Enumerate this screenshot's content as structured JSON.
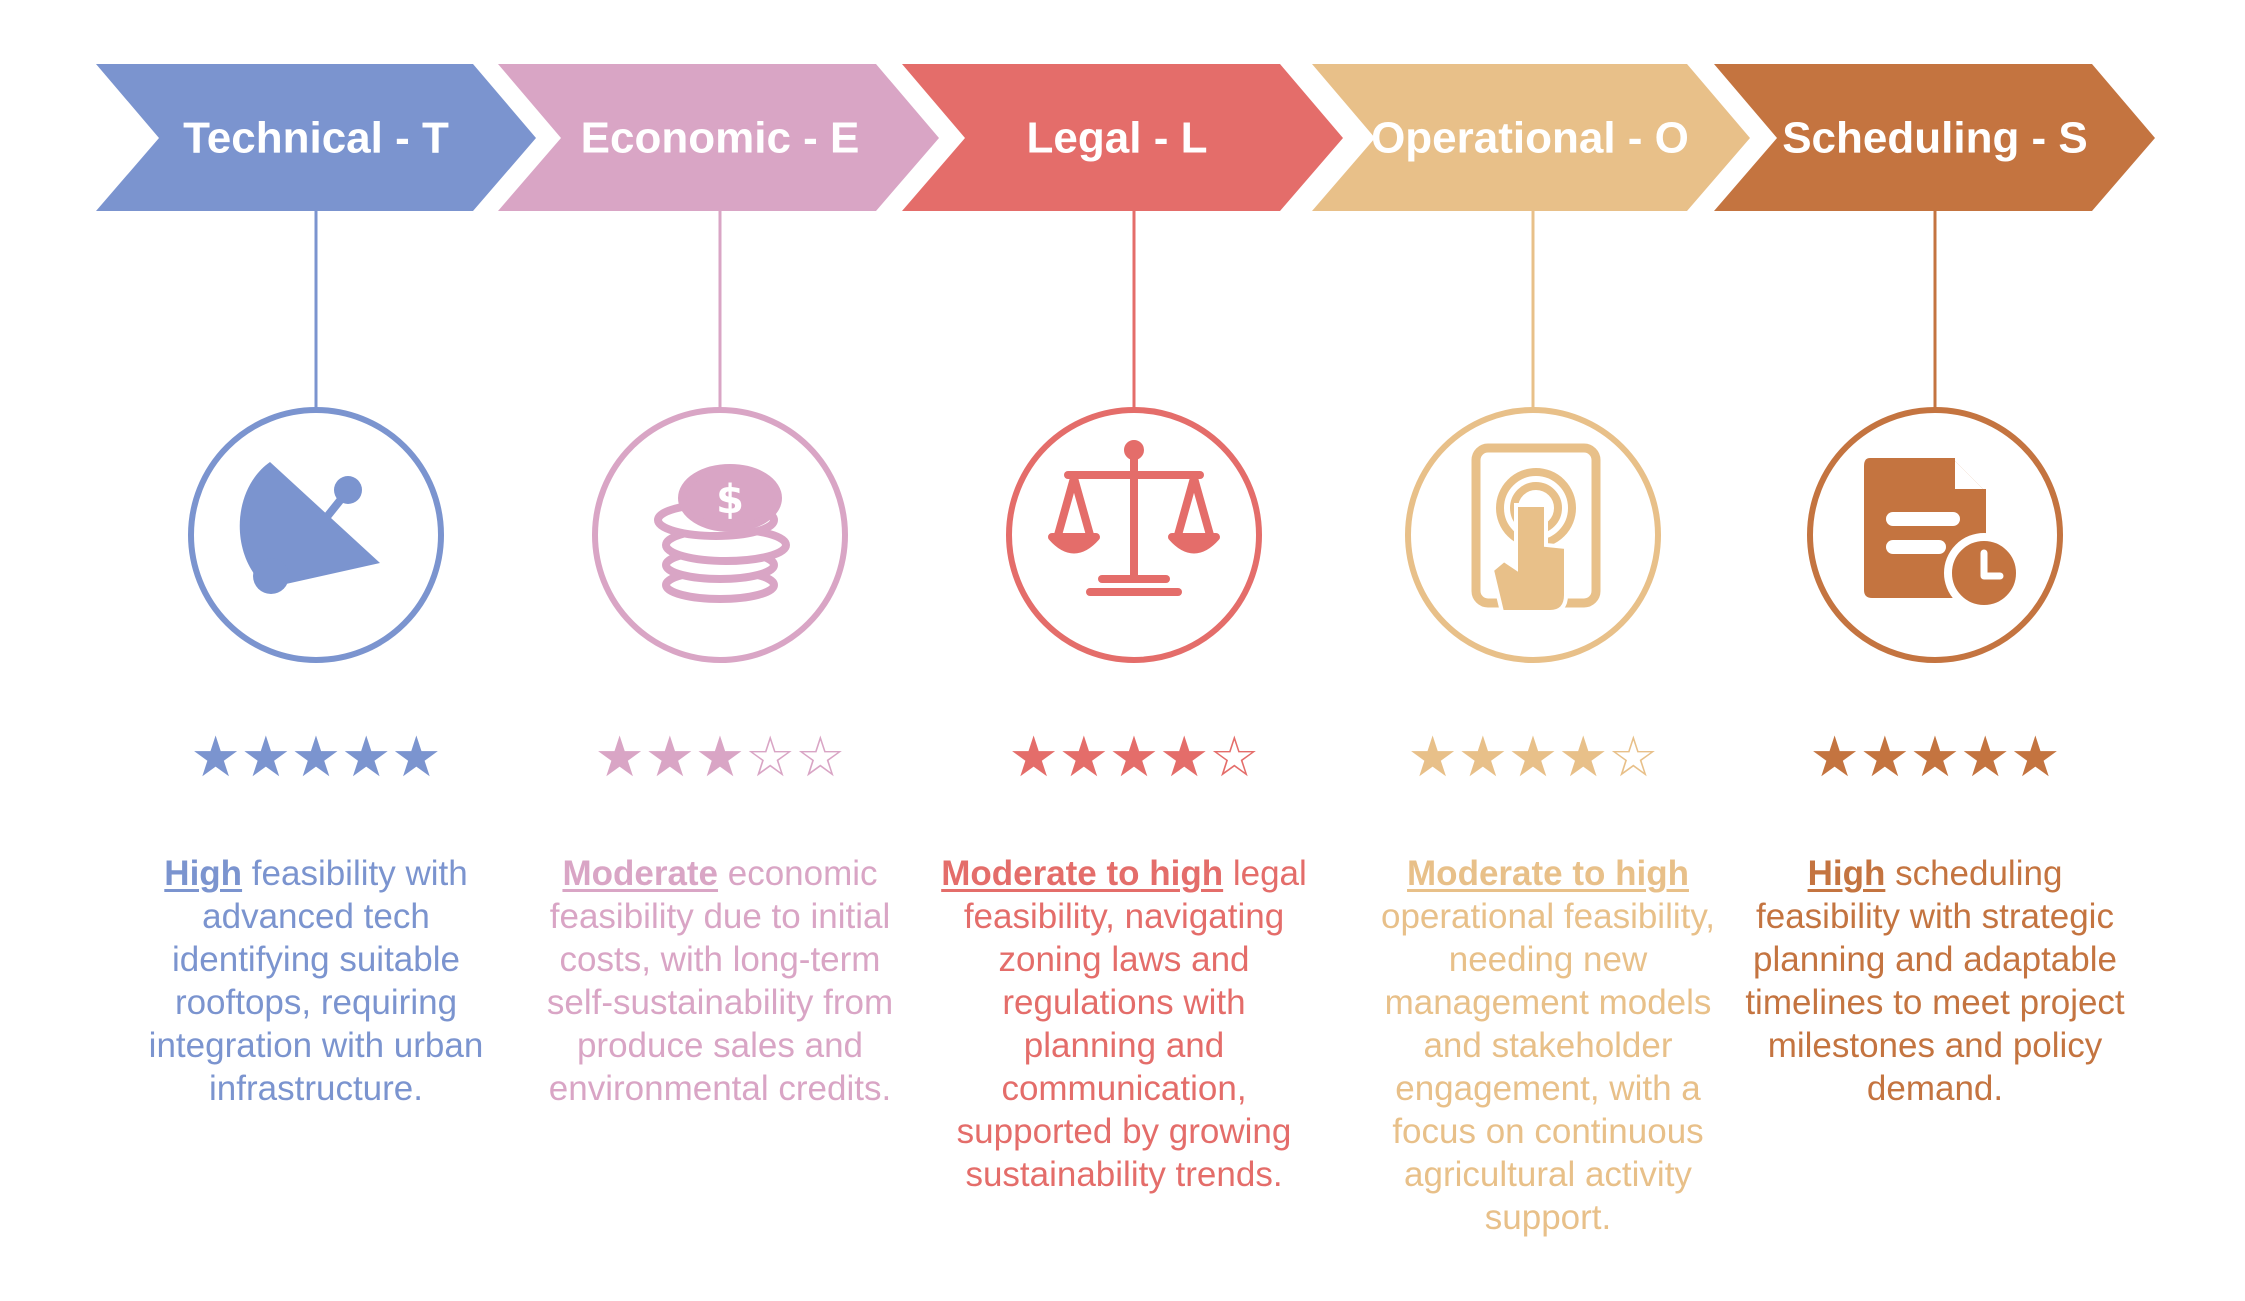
{
  "steps": [
    {
      "id": "technical",
      "title": "Technical - T",
      "color": "#7b94cf",
      "icon": "satellite-dish-icon",
      "rating": 5,
      "rating_max": 5,
      "highlight": "High",
      "text": " feasibility with advanced tech identifying suitable rooftops, requiring integration with urban infrastructure."
    },
    {
      "id": "economic",
      "title": "Economic - E",
      "color": "#d9a5c5",
      "icon": "coins-icon",
      "rating": 3,
      "rating_max": 5,
      "highlight": "Moderate",
      "text": " economic feasibility due to initial costs, with long-term self-sustainability from produce sales and environmental credits."
    },
    {
      "id": "legal",
      "title": "Legal - L",
      "color": "#e46d6a",
      "icon": "scales-icon",
      "rating": 4,
      "rating_max": 5,
      "highlight": "Moderate to high",
      "text": " legal feasibility, navigating zoning laws and regulations with planning and communication, supported by growing sustainability trends."
    },
    {
      "id": "operational",
      "title": "Operational - O",
      "color": "#e8c089",
      "icon": "tablet-touch-icon",
      "rating": 4,
      "rating_max": 5,
      "highlight": "Moderate to high",
      "text": " operational feasibility, needing new management models and stakeholder engagement, with a focus on continuous agricultural activity support."
    },
    {
      "id": "scheduling",
      "title": "Scheduling - S",
      "color": "#c47440",
      "icon": "document-clock-icon",
      "rating": 5,
      "rating_max": 5,
      "highlight": "High",
      "text": " scheduling feasibility with strategic planning and adaptable timelines to meet project milestones and policy demand."
    }
  ]
}
